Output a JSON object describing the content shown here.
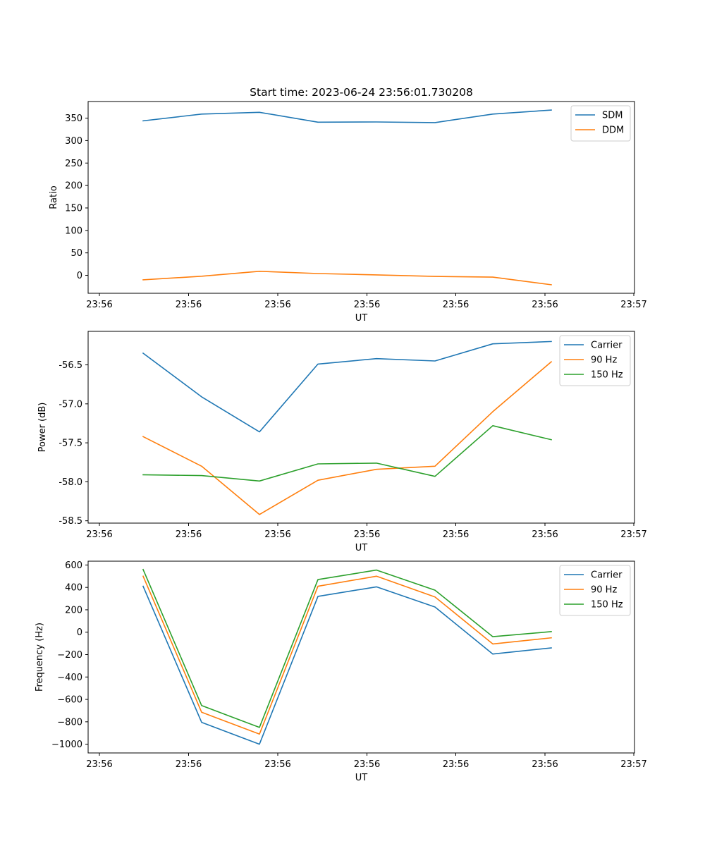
{
  "figure": {
    "title": "Start time: 2023-06-24 23:56:01.730208"
  },
  "chart_data": [
    {
      "type": "line",
      "title": "Start time: 2023-06-24 23:56:01.730208",
      "xlabel": "UT",
      "ylabel": "Ratio",
      "x_ticks": [
        "23:56",
        "23:56",
        "23:56",
        "23:56",
        "23:56",
        "23:56",
        "23:57"
      ],
      "y_ticks": [
        0,
        50,
        100,
        150,
        200,
        250,
        300,
        350
      ],
      "ylim": [
        -40,
        387
      ],
      "legend": "top-right",
      "grid": false,
      "series": [
        {
          "name": "SDM",
          "color": "#1f77b4",
          "values": [
            344,
            359,
            363,
            341,
            341.5,
            340,
            359,
            368
          ]
        },
        {
          "name": "DDM",
          "color": "#ff7f0e",
          "values": [
            -10,
            -2,
            9,
            4,
            1,
            -2.5,
            -4,
            -21
          ]
        }
      ]
    },
    {
      "type": "line",
      "title": "",
      "xlabel": "UT",
      "ylabel": "Power (dB)",
      "x_ticks": [
        "23:56",
        "23:56",
        "23:56",
        "23:56",
        "23:56",
        "23:56",
        "23:57"
      ],
      "y_ticks": [
        "-58.5",
        "-58.0",
        "-57.5",
        "-57.0",
        "-56.5"
      ],
      "ylim": [
        -58.53,
        -56.07
      ],
      "legend": "top-right",
      "grid": false,
      "series": [
        {
          "name": "Carrier",
          "color": "#1f77b4",
          "values": [
            -56.35,
            -56.91,
            -57.36,
            -56.49,
            -56.42,
            -56.45,
            -56.23,
            -56.2
          ]
        },
        {
          "name": "90 Hz",
          "color": "#ff7f0e",
          "values": [
            -57.42,
            -57.8,
            -58.42,
            -57.98,
            -57.84,
            -57.8,
            -57.1,
            -56.46
          ]
        },
        {
          "name": "150 Hz",
          "color": "#2ca02c",
          "values": [
            -57.91,
            -57.92,
            -57.99,
            -57.77,
            -57.76,
            -57.93,
            -57.28,
            -57.46
          ]
        }
      ]
    },
    {
      "type": "line",
      "title": "",
      "xlabel": "UT",
      "ylabel": "Frequency (Hz)",
      "x_ticks": [
        "23:56",
        "23:56",
        "23:56",
        "23:56",
        "23:56",
        "23:56",
        "23:57"
      ],
      "y_ticks": [
        "−1000",
        "−800",
        "−600",
        "−400",
        "−200",
        "0",
        "200",
        "400",
        "600"
      ],
      "ylim": [
        -1078,
        634
      ],
      "legend": "top-right",
      "grid": false,
      "series": [
        {
          "name": "Carrier",
          "color": "#1f77b4",
          "values": [
            410,
            -805,
            -1000,
            320,
            405,
            225,
            -195,
            -140
          ]
        },
        {
          "name": "90 Hz",
          "color": "#ff7f0e",
          "values": [
            500,
            -715,
            -910,
            410,
            500,
            315,
            -105,
            -50
          ]
        },
        {
          "name": "150 Hz",
          "color": "#2ca02c",
          "values": [
            560,
            -655,
            -850,
            470,
            555,
            375,
            -40,
            5
          ]
        }
      ]
    }
  ]
}
